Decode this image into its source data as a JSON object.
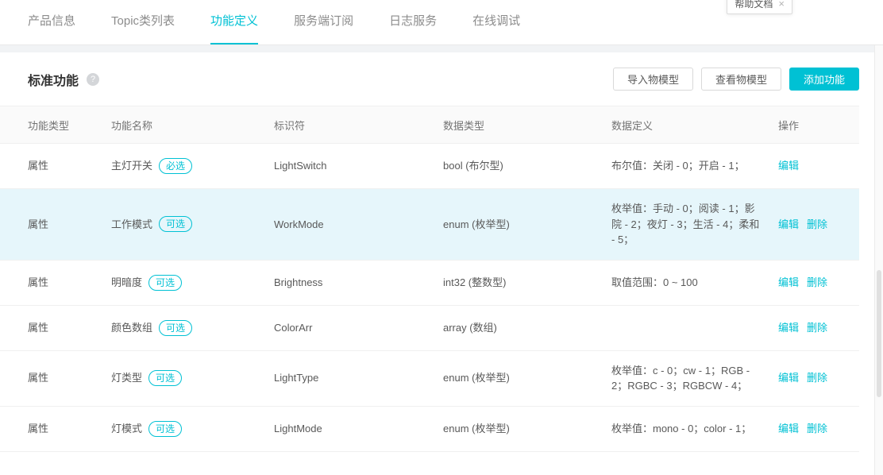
{
  "colors": {
    "accent": "#00c1d4",
    "highlight": "#e6f6fb"
  },
  "tabs": [
    {
      "name": "product-info",
      "label": "产品信息",
      "active": false
    },
    {
      "name": "topic-list",
      "label": "Topic类列表",
      "active": false
    },
    {
      "name": "function-definition",
      "label": "功能定义",
      "active": true
    },
    {
      "name": "server-subscription",
      "label": "服务端订阅",
      "active": false
    },
    {
      "name": "log-service",
      "label": "日志服务",
      "active": false
    },
    {
      "name": "online-debug",
      "label": "在线调试",
      "active": false
    }
  ],
  "help_popup": {
    "label": "帮助文档",
    "close_icon": "×"
  },
  "section": {
    "title": "标准功能",
    "help_icon": "?"
  },
  "toolbar": {
    "import_button": "导入物模型",
    "view_button": "查看物模型",
    "add_button": "添加功能"
  },
  "table": {
    "headers": [
      "功能类型",
      "功能名称",
      "标识符",
      "数据类型",
      "数据定义",
      "操作"
    ],
    "rows": [
      {
        "type": "属性",
        "name": "主灯开关",
        "badge": {
          "label": "必选",
          "kind": "required"
        },
        "identifier": "LightSwitch",
        "data_type": "bool (布尔型)",
        "definition": "布尔值：关闭 - 0；开启 - 1；",
        "actions": [
          {
            "label": "编辑",
            "kind": "edit"
          }
        ],
        "highlighted": false
      },
      {
        "type": "属性",
        "name": "工作模式",
        "badge": {
          "label": "可选",
          "kind": "optional"
        },
        "identifier": "WorkMode",
        "data_type": "enum (枚举型)",
        "definition": "枚举值：手动 - 0；阅读 - 1；影院 - 2；夜灯 - 3；生活 - 4；柔和 - 5；",
        "actions": [
          {
            "label": "编辑",
            "kind": "edit"
          },
          {
            "label": "删除",
            "kind": "delete"
          }
        ],
        "highlighted": true
      },
      {
        "type": "属性",
        "name": "明暗度",
        "badge": {
          "label": "可选",
          "kind": "optional"
        },
        "identifier": "Brightness",
        "data_type": "int32 (整数型)",
        "definition": "取值范围：0 ~ 100",
        "actions": [
          {
            "label": "编辑",
            "kind": "edit"
          },
          {
            "label": "删除",
            "kind": "delete"
          }
        ],
        "highlighted": false
      },
      {
        "type": "属性",
        "name": "颜色数组",
        "badge": {
          "label": "可选",
          "kind": "optional"
        },
        "identifier": "ColorArr",
        "data_type": "array (数组)",
        "definition": "",
        "actions": [
          {
            "label": "编辑",
            "kind": "edit"
          },
          {
            "label": "删除",
            "kind": "delete"
          }
        ],
        "highlighted": false
      },
      {
        "type": "属性",
        "name": "灯类型",
        "badge": {
          "label": "可选",
          "kind": "optional"
        },
        "identifier": "LightType",
        "data_type": "enum (枚举型)",
        "definition": "枚举值：c - 0；cw - 1；RGB - 2；RGBC - 3；RGBCW - 4；",
        "actions": [
          {
            "label": "编辑",
            "kind": "edit"
          },
          {
            "label": "删除",
            "kind": "delete"
          }
        ],
        "highlighted": false
      },
      {
        "type": "属性",
        "name": "灯模式",
        "badge": {
          "label": "可选",
          "kind": "optional"
        },
        "identifier": "LightMode",
        "data_type": "enum (枚举型)",
        "definition": "枚举值：mono - 0；color - 1；",
        "actions": [
          {
            "label": "编辑",
            "kind": "edit"
          },
          {
            "label": "删除",
            "kind": "delete"
          }
        ],
        "highlighted": false
      }
    ]
  }
}
